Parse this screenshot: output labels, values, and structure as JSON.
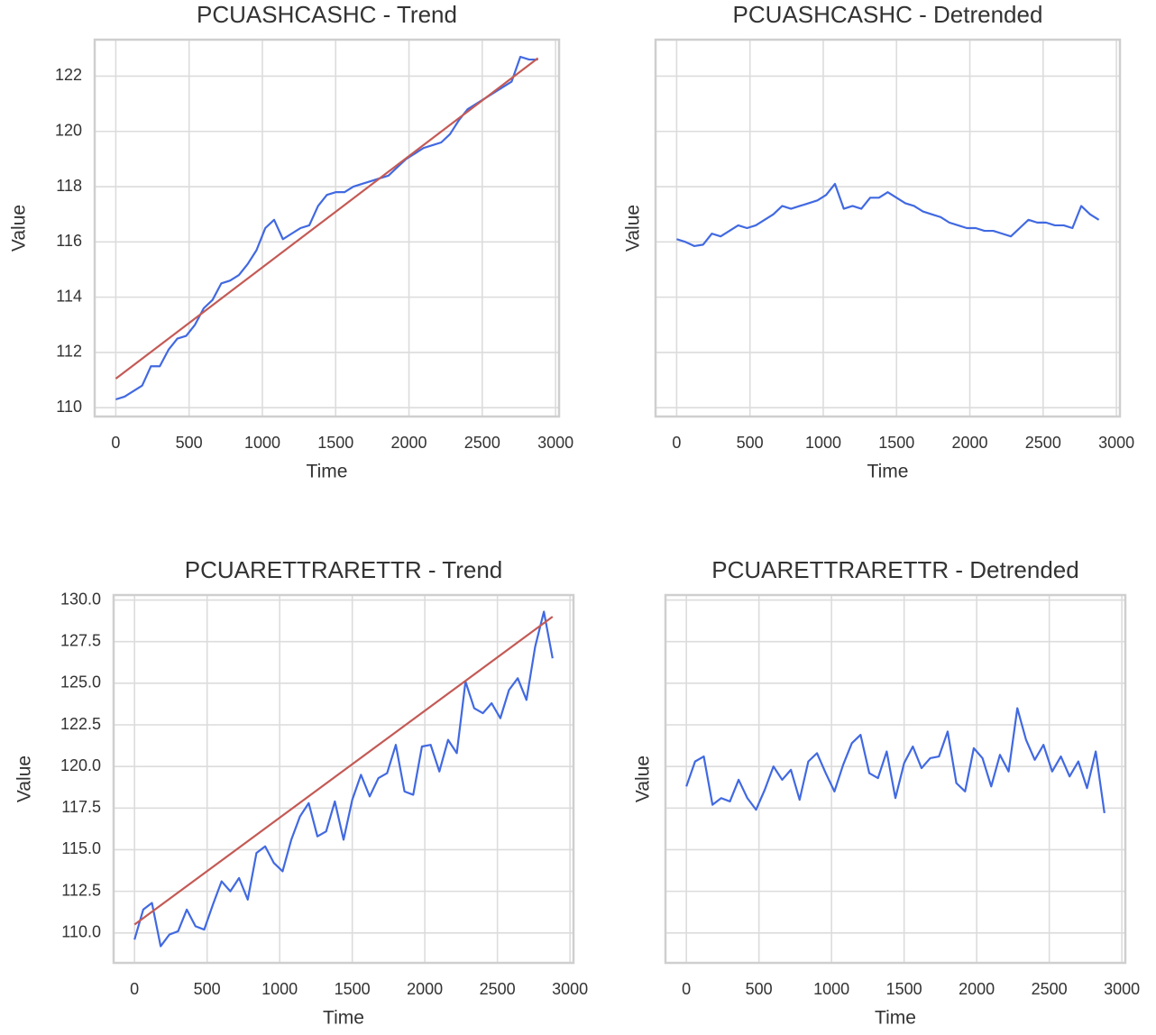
{
  "chart_data": [
    {
      "type": "line",
      "title": "PCUASHCASHC - Trend",
      "xlabel": "Time",
      "ylabel": "Value",
      "x": [
        0,
        60,
        120,
        180,
        240,
        300,
        360,
        420,
        480,
        540,
        600,
        660,
        720,
        780,
        840,
        900,
        960,
        1020,
        1080,
        1140,
        1200,
        1260,
        1320,
        1380,
        1440,
        1500,
        1560,
        1620,
        1680,
        1740,
        1800,
        1860,
        1920,
        1980,
        2040,
        2100,
        2160,
        2220,
        2280,
        2340,
        2400,
        2460,
        2520,
        2580,
        2640,
        2700,
        2760,
        2820,
        2880
      ],
      "series": [
        {
          "color": "#4169e1",
          "values": [
            110.3,
            110.4,
            110.6,
            110.8,
            111.5,
            111.5,
            112.1,
            112.5,
            112.6,
            113.0,
            113.6,
            113.9,
            114.5,
            114.6,
            114.8,
            115.2,
            115.7,
            116.5,
            116.8,
            116.1,
            116.3,
            116.5,
            116.6,
            117.3,
            117.7,
            117.8,
            117.8,
            118.0,
            118.1,
            118.2,
            118.3,
            118.4,
            118.7,
            119.0,
            119.2,
            119.4,
            119.5,
            119.6,
            119.9,
            120.4,
            120.8,
            121.0,
            121.2,
            121.4,
            121.6,
            121.8,
            122.7,
            122.6,
            122.6
          ]
        },
        {
          "color": "#c45a55",
          "x": [
            0,
            2880
          ],
          "values": [
            111.05,
            122.65
          ]
        }
      ],
      "xlim": [
        -144,
        3024
      ],
      "xticks": [
        0,
        500,
        1000,
        1500,
        2000,
        2500,
        3000
      ],
      "ylim": [
        109.68,
        123.32
      ],
      "yticks": [
        110,
        112,
        114,
        116,
        118,
        120,
        122
      ],
      "ytick_labels": true,
      "grid": true
    },
    {
      "type": "line",
      "title": "PCUASHCASHC - Detrended",
      "xlabel": "Time",
      "ylabel": "Value",
      "x": [
        0,
        60,
        120,
        180,
        240,
        300,
        360,
        420,
        480,
        540,
        600,
        660,
        720,
        780,
        840,
        900,
        960,
        1020,
        1080,
        1140,
        1200,
        1260,
        1320,
        1380,
        1440,
        1500,
        1560,
        1620,
        1680,
        1740,
        1800,
        1860,
        1920,
        1980,
        2040,
        2100,
        2160,
        2220,
        2280,
        2340,
        2400,
        2460,
        2520,
        2580,
        2640,
        2700,
        2760,
        2820,
        2880
      ],
      "series": [
        {
          "color": "#4169e1",
          "values": [
            116.1,
            116.0,
            115.85,
            115.9,
            116.3,
            116.2,
            116.4,
            116.6,
            116.5,
            116.6,
            116.8,
            117.0,
            117.3,
            117.2,
            117.3,
            117.4,
            117.5,
            117.7,
            118.1,
            117.2,
            117.3,
            117.2,
            117.6,
            117.6,
            117.8,
            117.6,
            117.4,
            117.3,
            117.1,
            117.0,
            116.9,
            116.7,
            116.6,
            116.5,
            116.5,
            116.4,
            116.4,
            116.3,
            116.2,
            116.5,
            116.8,
            116.7,
            116.7,
            116.6,
            116.6,
            116.5,
            117.3,
            117.0,
            116.8
          ]
        }
      ],
      "xlim": [
        -144,
        3024
      ],
      "xticks": [
        0,
        500,
        1000,
        1500,
        2000,
        2500,
        3000
      ],
      "ylim": [
        109.68,
        123.32
      ],
      "yticks": [
        110,
        112,
        114,
        116,
        118,
        120,
        122
      ],
      "ytick_labels": false,
      "grid": true
    },
    {
      "type": "line",
      "title": "PCUARETTRARETTR - Trend",
      "xlabel": "Time",
      "ylabel": "Value",
      "x": [
        0,
        60,
        120,
        180,
        240,
        300,
        360,
        420,
        480,
        540,
        600,
        660,
        720,
        780,
        840,
        900,
        960,
        1020,
        1080,
        1140,
        1200,
        1260,
        1320,
        1380,
        1440,
        1500,
        1560,
        1620,
        1680,
        1740,
        1800,
        1860,
        1920,
        1980,
        2040,
        2100,
        2160,
        2220,
        2280,
        2340,
        2400,
        2460,
        2520,
        2580,
        2640,
        2700,
        2760,
        2820,
        2880
      ],
      "series": [
        {
          "color": "#4169e1",
          "values": [
            109.6,
            111.4,
            111.8,
            109.2,
            109.9,
            110.1,
            111.4,
            110.4,
            110.2,
            111.7,
            113.1,
            112.5,
            113.3,
            112.0,
            114.8,
            115.2,
            114.2,
            113.7,
            115.6,
            117.0,
            117.8,
            115.8,
            116.1,
            117.9,
            115.6,
            118.0,
            119.5,
            118.2,
            119.3,
            119.6,
            121.3,
            118.5,
            118.3,
            121.2,
            121.3,
            119.7,
            121.6,
            120.8,
            125.1,
            123.5,
            123.2,
            123.8,
            122.9,
            124.6,
            125.3,
            124.0,
            127.2,
            129.3,
            126.5
          ]
        },
        {
          "color": "#c45a55",
          "x": [
            0,
            2880
          ],
          "values": [
            110.5,
            129.0
          ]
        }
      ],
      "xlim": [
        -144,
        3024
      ],
      "xticks": [
        0,
        500,
        1000,
        1500,
        2000,
        2500,
        3000
      ],
      "ylim": [
        108.2,
        130.3
      ],
      "yticks": [
        {
          "value": 110,
          "label": "110.0"
        },
        {
          "value": 112.5,
          "label": "112.5"
        },
        {
          "value": 115,
          "label": "115.0"
        },
        {
          "value": 117.5,
          "label": "117.5"
        },
        {
          "value": 120,
          "label": "120.0"
        },
        {
          "value": 122.5,
          "label": "122.5"
        },
        {
          "value": 125,
          "label": "125.0"
        },
        {
          "value": 127.5,
          "label": "127.5"
        },
        {
          "value": 130,
          "label": "130.0"
        }
      ],
      "ytick_labels": true,
      "grid": true
    },
    {
      "type": "line",
      "title": "PCUARETTRARETTR - Detrended",
      "xlabel": "Time",
      "ylabel": "Value",
      "x": [
        0,
        60,
        120,
        180,
        240,
        300,
        360,
        420,
        480,
        540,
        600,
        660,
        720,
        780,
        840,
        900,
        960,
        1020,
        1080,
        1140,
        1200,
        1260,
        1320,
        1380,
        1440,
        1500,
        1560,
        1620,
        1680,
        1740,
        1800,
        1860,
        1920,
        1980,
        2040,
        2100,
        2160,
        2220,
        2280,
        2340,
        2400,
        2460,
        2520,
        2580,
        2640,
        2700,
        2760,
        2820,
        2880
      ],
      "series": [
        {
          "color": "#4169e1",
          "values": [
            118.8,
            120.3,
            120.6,
            117.7,
            118.1,
            117.9,
            119.2,
            118.1,
            117.4,
            118.6,
            120.0,
            119.2,
            119.8,
            118.0,
            120.3,
            120.8,
            119.6,
            118.5,
            120.1,
            121.4,
            121.9,
            119.6,
            119.3,
            120.9,
            118.1,
            120.2,
            121.2,
            119.9,
            120.5,
            120.6,
            122.1,
            119.0,
            118.5,
            121.1,
            120.5,
            118.8,
            120.7,
            119.7,
            123.5,
            121.6,
            120.4,
            121.3,
            119.7,
            120.6,
            119.4,
            120.3,
            118.7,
            120.9,
            117.2
          ]
        }
      ],
      "xlim": [
        -144,
        3024
      ],
      "xticks": [
        0,
        500,
        1000,
        1500,
        2000,
        2500,
        3000
      ],
      "ylim": [
        108.2,
        130.3
      ],
      "yticks": [
        110,
        112.5,
        115,
        117.5,
        120,
        122.5,
        125,
        127.5,
        130
      ],
      "ytick_labels": false,
      "grid": true
    }
  ]
}
